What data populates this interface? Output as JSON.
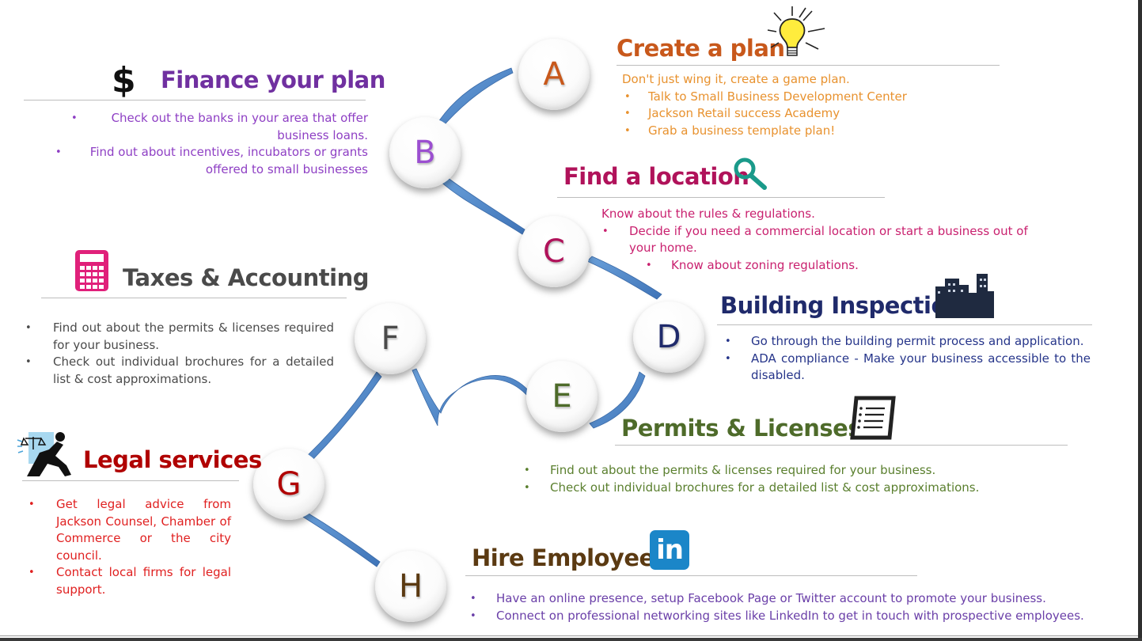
{
  "steps": {
    "a": {
      "letter": "A",
      "title": "Create a plan",
      "intro": "Don't just wing it, create a game plan.",
      "bullets": [
        "Talk to Small Business Development Center",
        "Jackson Retail success Academy",
        "Grab a business template plan!"
      ]
    },
    "b": {
      "letter": "B",
      "title": "Finance your plan",
      "bullets": [
        "Check out the banks in your area that offer business loans.",
        "Find out about incentives, incubators or grants offered to small businesses"
      ]
    },
    "c": {
      "letter": "C",
      "title": "Find a location",
      "intro": "Know about the rules & regulations.",
      "bullets": [
        "Decide if you need a commercial location or start a business out of your home."
      ],
      "sub_bullets": [
        "Know about zoning regulations."
      ]
    },
    "d": {
      "letter": "D",
      "title": "Building Inspection",
      "bullets": [
        "Go through the building permit process and application.",
        "ADA compliance - Make your business accessible to the disabled."
      ]
    },
    "e": {
      "letter": "E",
      "title": "Permits & Licenses",
      "bullets": [
        "Find out about the permits & licenses required for your business.",
        "Check out individual brochures for a detailed list & cost approximations."
      ]
    },
    "f": {
      "letter": "F",
      "title": "Taxes & Accounting",
      "bullets": [
        "Find out about the permits & licenses required for your business.",
        "Check out individual brochures for a detailed list & cost approximations."
      ]
    },
    "g": {
      "letter": "G",
      "title": "Legal services",
      "bullets": [
        "Get legal advice from Jackson Counsel, Chamber of Commerce or the city council.",
        "Contact local firms for legal support."
      ]
    },
    "h": {
      "letter": "H",
      "title": "Hire Employees",
      "bullets": [
        "Have an online presence, setup Facebook Page or Twitter account to promote your business.",
        "Connect on professional networking sites like LinkedIn to get in touch with prospective employees."
      ]
    }
  },
  "icons": {
    "finance": "dollar-sign-icon",
    "plan": "light-bulb-icon",
    "location": "magnifier-icon",
    "inspection": "city-buildings-icon",
    "permits": "document-icon",
    "taxes": "calculator-icon",
    "legal": "justice-figure-icon",
    "hire": "linkedin-icon",
    "linkedin_text": "in",
    "dollar": "$"
  },
  "colors": {
    "plan": "#c8581b",
    "plan_text": "#e8922f",
    "finance": "#7030a0",
    "finance_text": "#8e3fc4",
    "location": "#b0125a",
    "location_text": "#c9216f",
    "inspection": "#1f2a6b",
    "inspection_text": "#26358a",
    "permits": "#4e6b2a",
    "permits_text": "#5a7f2e",
    "taxes": "#4a4a4a",
    "taxes_text": "#4a4a4a",
    "legal": "#b00000",
    "legal_text": "#e02020",
    "hire": "#5b3a12",
    "hire_text": "#6a3fa8",
    "ribbon": "#4f86c6"
  }
}
